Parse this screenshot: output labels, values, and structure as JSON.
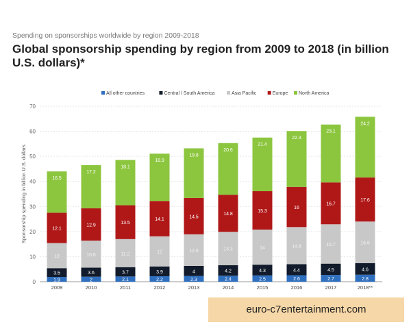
{
  "header": {
    "supertitle": "Spending on sponsorships worldwide by region 2009-2018",
    "title": "Global sponsorship spending by region from 2009 to 2018 (in billion U.S. dollars)*"
  },
  "watermark": {
    "text": "euro-c7entertainment.com"
  },
  "chart_data": {
    "type": "bar",
    "stacked": true,
    "categories": [
      "2009",
      "2010",
      "2011",
      "2012",
      "2013",
      "2014",
      "2015",
      "2016",
      "2017",
      "2018**"
    ],
    "series": [
      {
        "name": "All other countries",
        "color": "#2f6fbf",
        "values": [
          1.9,
          2,
          2.1,
          2.2,
          2.3,
          2.4,
          2.5,
          2.6,
          2.7,
          2.8
        ]
      },
      {
        "name": "Central / South America",
        "color": "#111b2b",
        "values": [
          3.5,
          3.6,
          3.7,
          3.9,
          4,
          4.2,
          4.3,
          4.4,
          4.5,
          4.6
        ]
      },
      {
        "name": "Asia Pacific",
        "color": "#c8c8c8",
        "values": [
          10,
          10.8,
          11.2,
          12,
          12.6,
          13.3,
          14,
          14.8,
          15.7,
          16.6
        ]
      },
      {
        "name": "Europe",
        "color": "#b01818",
        "values": [
          12.1,
          12.9,
          13.5,
          14.1,
          14.5,
          14.8,
          15.3,
          16,
          16.7,
          17.6
        ]
      },
      {
        "name": "North America",
        "color": "#8cc63f",
        "values": [
          16.5,
          17.2,
          18.1,
          18.9,
          19.8,
          20.6,
          21.4,
          22.3,
          23.1,
          24.2
        ]
      }
    ],
    "labels": {
      "All other countries": [
        "1.9",
        "2",
        "2.1",
        "2.2",
        "2.3",
        "2.4",
        "2.5",
        "2.6",
        "2.7",
        "2.8"
      ],
      "Central / South America": [
        "3.5",
        "3.6",
        "3.7",
        "3.9",
        "4",
        "4.2",
        "4.3",
        "4.4",
        "4.5",
        "4.6"
      ],
      "Asia Pacific": [
        "10",
        "10.8",
        "11.2",
        "12",
        "12.6",
        "13.3",
        "14",
        "14.8",
        "15.7",
        "16.6"
      ],
      "Europe": [
        "12.1",
        "12.9",
        "13.5",
        "14.1",
        "14.5",
        "14.8",
        "15.3",
        "16",
        "16.7",
        "17.6"
      ],
      "North America": [
        "16.5",
        "17.2",
        "18.1",
        "18.9",
        "19.8",
        "20.6",
        "21.4",
        "22.3",
        "23.1",
        "24.2"
      ]
    },
    "ylabel": "Sponsorship spending in billion U.S. dollars",
    "ylim": [
      0,
      70
    ],
    "yticks": [
      0,
      10,
      20,
      30,
      40,
      50,
      60,
      70
    ],
    "grid": true,
    "legend": "top-center"
  }
}
